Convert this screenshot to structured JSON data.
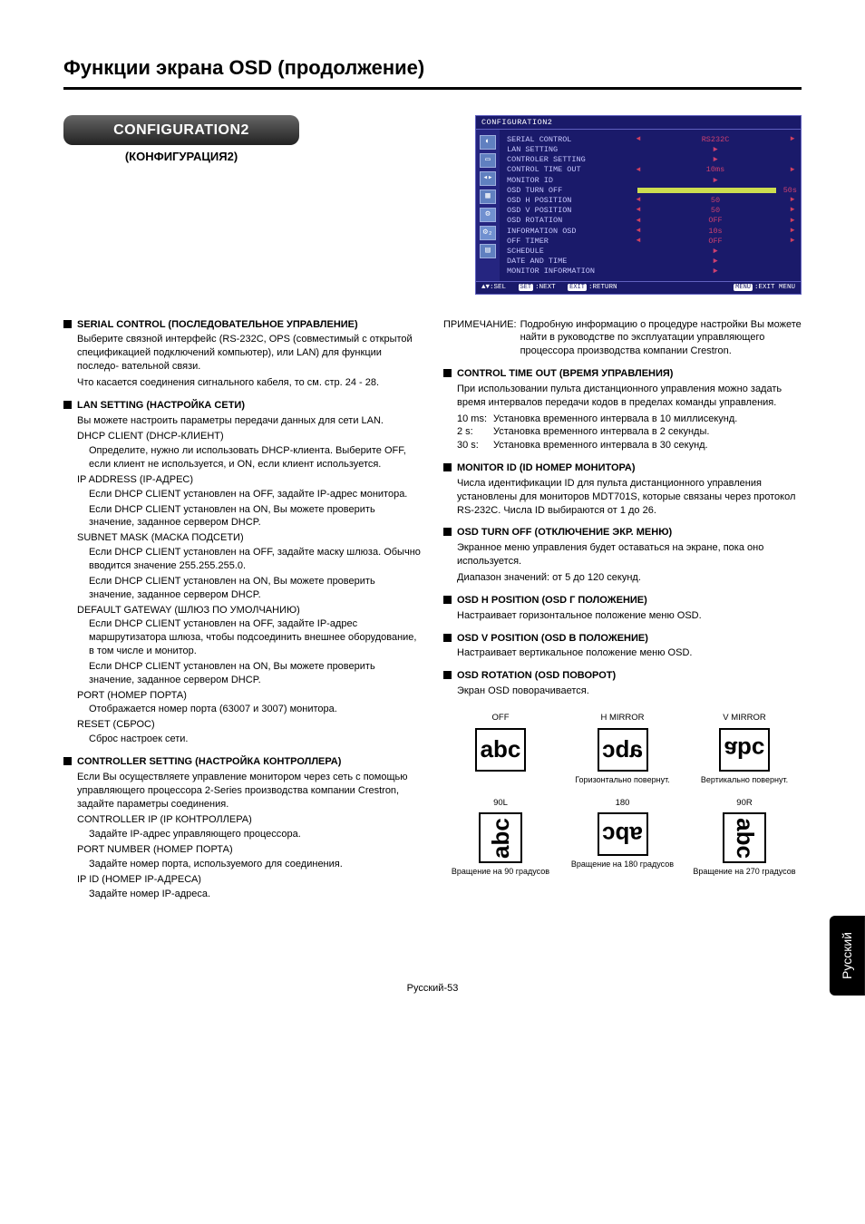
{
  "page_title": "Функции экрана OSD (продолжение)",
  "config_button": "CONFIGURATION2",
  "config_subtitle": "(КОНФИГУРАЦИЯ2)",
  "osd": {
    "title": "CONFIGURATION2",
    "rows": [
      {
        "label": "SERIAL CONTROL",
        "left": "◄",
        "val": "RS232C",
        "right": "►"
      },
      {
        "label": "LAN SETTING",
        "left": "",
        "val": "►",
        "right": ""
      },
      {
        "label": "CONTROLER SETTING",
        "left": "",
        "val": "►",
        "right": ""
      },
      {
        "label": "CONTROL TIME OUT",
        "left": "◄",
        "val": "10ms",
        "right": "►"
      },
      {
        "label": "MONITOR ID",
        "left": "",
        "val": "►",
        "right": ""
      },
      {
        "label": "OSD TURN OFF",
        "left": "",
        "val": "",
        "right": "50s",
        "bar": true
      },
      {
        "label": "OSD H POSITION",
        "left": "◄",
        "val": "50",
        "right": "►"
      },
      {
        "label": "OSD V POSITION",
        "left": "◄",
        "val": "50",
        "right": "►"
      },
      {
        "label": "OSD ROTATION",
        "left": "◄",
        "val": "OFF",
        "right": "►"
      },
      {
        "label": "INFORMATION OSD",
        "left": "◄",
        "val": "10s",
        "right": "►"
      },
      {
        "label": "OFF TIMER",
        "left": "◄",
        "val": "OFF",
        "right": "►"
      },
      {
        "label": "SCHEDULE",
        "left": "",
        "val": "►",
        "right": ""
      },
      {
        "label": "DATE AND TIME",
        "left": "",
        "val": "►",
        "right": ""
      },
      {
        "label": "MONITOR INFORMATION",
        "left": "",
        "val": "►",
        "right": ""
      }
    ],
    "foot_sel": "▲▼:SEL",
    "foot_next_badge": "SET",
    "foot_next": ":NEXT",
    "foot_ret_badge": "EXIT",
    "foot_ret": ":RETURN",
    "foot_menu_badge": "MENU",
    "foot_menu": ":EXIT MENU"
  },
  "left_col": {
    "serial": {
      "h": "SERIAL CONTROL (ПОСЛЕДОВАТЕЛЬНОЕ УПРАВЛЕНИЕ)",
      "p1": "Выберите связной интерфейс (RS-232C, OPS (совместимый с открытой спецификацией подключений компьютер), или LAN) для функции последо- вательной связи.",
      "p2": "Что касается соединения сигнального кабеля, то см. стр. 24 - 28."
    },
    "lan": {
      "h": "LAN SETTING (НАСТРОЙКА СЕТИ)",
      "p": "Вы можете настроить параметры передачи данных для сети LAN.",
      "dhcp_h": "DHCP CLIENT (DHCP-КЛИЕНТ)",
      "dhcp_p": "Определите, нужно ли использовать DHCP-клиента. Выберите OFF, если клиент не используется, и ON, если клиент используется.",
      "ip_h": "IP ADDRESS (IP-АДРЕС)",
      "ip_p1": "Если DHCP CLIENT установлен на OFF, задайте IP-адрес монитора.",
      "ip_p2": "Если DHCP CLIENT установлен на ON, Вы можете проверить значение, заданное сервером DHCP.",
      "subnet_h": "SUBNET MASK (МАСКА ПОДСЕТИ)",
      "subnet_p1": "Если DHCP CLIENT установлен на OFF, задайте маску шлюза. Обычно вводится значение 255.255.255.0.",
      "subnet_p2": "Если DHCP CLIENT установлен на ON, Вы можете проверить значение, заданное сервером DHCP.",
      "gw_h": "DEFAULT GATEWAY (ШЛЮЗ ПО УМОЛЧАНИЮ)",
      "gw_p1": "Если DHCP CLIENT установлен на OFF, задайте IP-адрес маршрутизатора шлюза, чтобы подсоединить внешнее оборудование, в том числе и монитор.",
      "gw_p2": "Если DHCP CLIENT установлен на ON, Вы можете проверить значение, заданное сервером DHCP.",
      "port_h": "PORT (НОМЕР ПОРТА)",
      "port_p": "Отображается номер порта (63007 и 3007) монитора.",
      "reset_h": "RESET (СБРОС)",
      "reset_p": "Сброс настроек сети."
    },
    "controller": {
      "h": "CONTROLLER SETTING (НАСТРОЙКА КОНТРОЛЛЕРА)",
      "p": "Если Вы осуществляете управление монитором через сеть с помощью управляющего процессора 2-Series производства компании Crestron, задайте параметры соединения.",
      "cip_h": "CONTROLLER IP (IP КОНТРОЛЛЕРА)",
      "cip_p": "Задайте IP-адрес управляющего процессора.",
      "pn_h": "PORT NUMBER (НОМЕР ПОРТА)",
      "pn_p": "Задайте номер порта, используемого для соединения.",
      "ipid_h": "IP ID (НОМЕР IP-АДРЕСА)",
      "ipid_p": "Задайте номер IP-адреса."
    }
  },
  "right_col": {
    "note_l": "ПРИМЕЧАНИЕ:",
    "note_p": "Подробную информацию о процедуре настройки Вы можете найти в руководстве по эксплуатации управляющего процессора производства компании Crestron.",
    "cto": {
      "h": "CONTROL TIME OUT (ВРЕМЯ УПРАВЛЕНИЯ)",
      "p": "При использовании пульта дистанционного управления можно задать время интервалов передачи кодов в пределах команды управления.",
      "o1l": "10 ms:",
      "o1": "Установка временного интервала в 10 миллисекунд.",
      "o2l": "2 s:",
      "o2": "Установка временного интервала в 2 секунды.",
      "o3l": "30 s:",
      "o3": "Установка временного интервала в 30 секунд."
    },
    "mid": {
      "h": "MONITOR ID (ID НОМЕР МОНИТОРА)",
      "p": "Числа идентификации ID для пульта дистанционного управления установлены для мониторов MDT701S, которые связаны через протокол RS-232C. Числа ID выбираются от 1 до 26."
    },
    "oto": {
      "h": "OSD TURN OFF (ОТКЛЮЧЕНИЕ ЭКР. МЕНЮ)",
      "p1": "Экранное меню управления будет оставаться на экране, пока оно используется.",
      "p2": "Диапазон значений: от 5 до 120 секунд."
    },
    "ohp": {
      "h": "OSD H POSITION (OSD Г ПОЛОЖЕНИЕ)",
      "p": "Настраивает горизонтальное положение меню OSD."
    },
    "ovp": {
      "h": "OSD V POSITION (OSD В ПОЛОЖЕНИЕ)",
      "p": "Настраивает вертикальное положение меню OSD."
    },
    "orot": {
      "h": "OSD ROTATION (OSD ПОВОРОТ)",
      "p": "Экран OSD поворачивается."
    },
    "rot": {
      "off": {
        "label": "OFF",
        "text": "abc",
        "cap": ""
      },
      "hm": {
        "label": "H MIRROR",
        "cap": "Горизонтально повернут."
      },
      "vm": {
        "label": "V MIRROR",
        "cap": "Вертикально повернут."
      },
      "l90": {
        "label": "90L",
        "cap": "Вращение на 90 градусов"
      },
      "r180": {
        "label": "180",
        "cap": "Вращение на 180 градусов"
      },
      "r90": {
        "label": "90R",
        "cap": "Вращение на 270 градусов"
      }
    }
  },
  "side_tab": "Русский",
  "footer": "Русский-53"
}
